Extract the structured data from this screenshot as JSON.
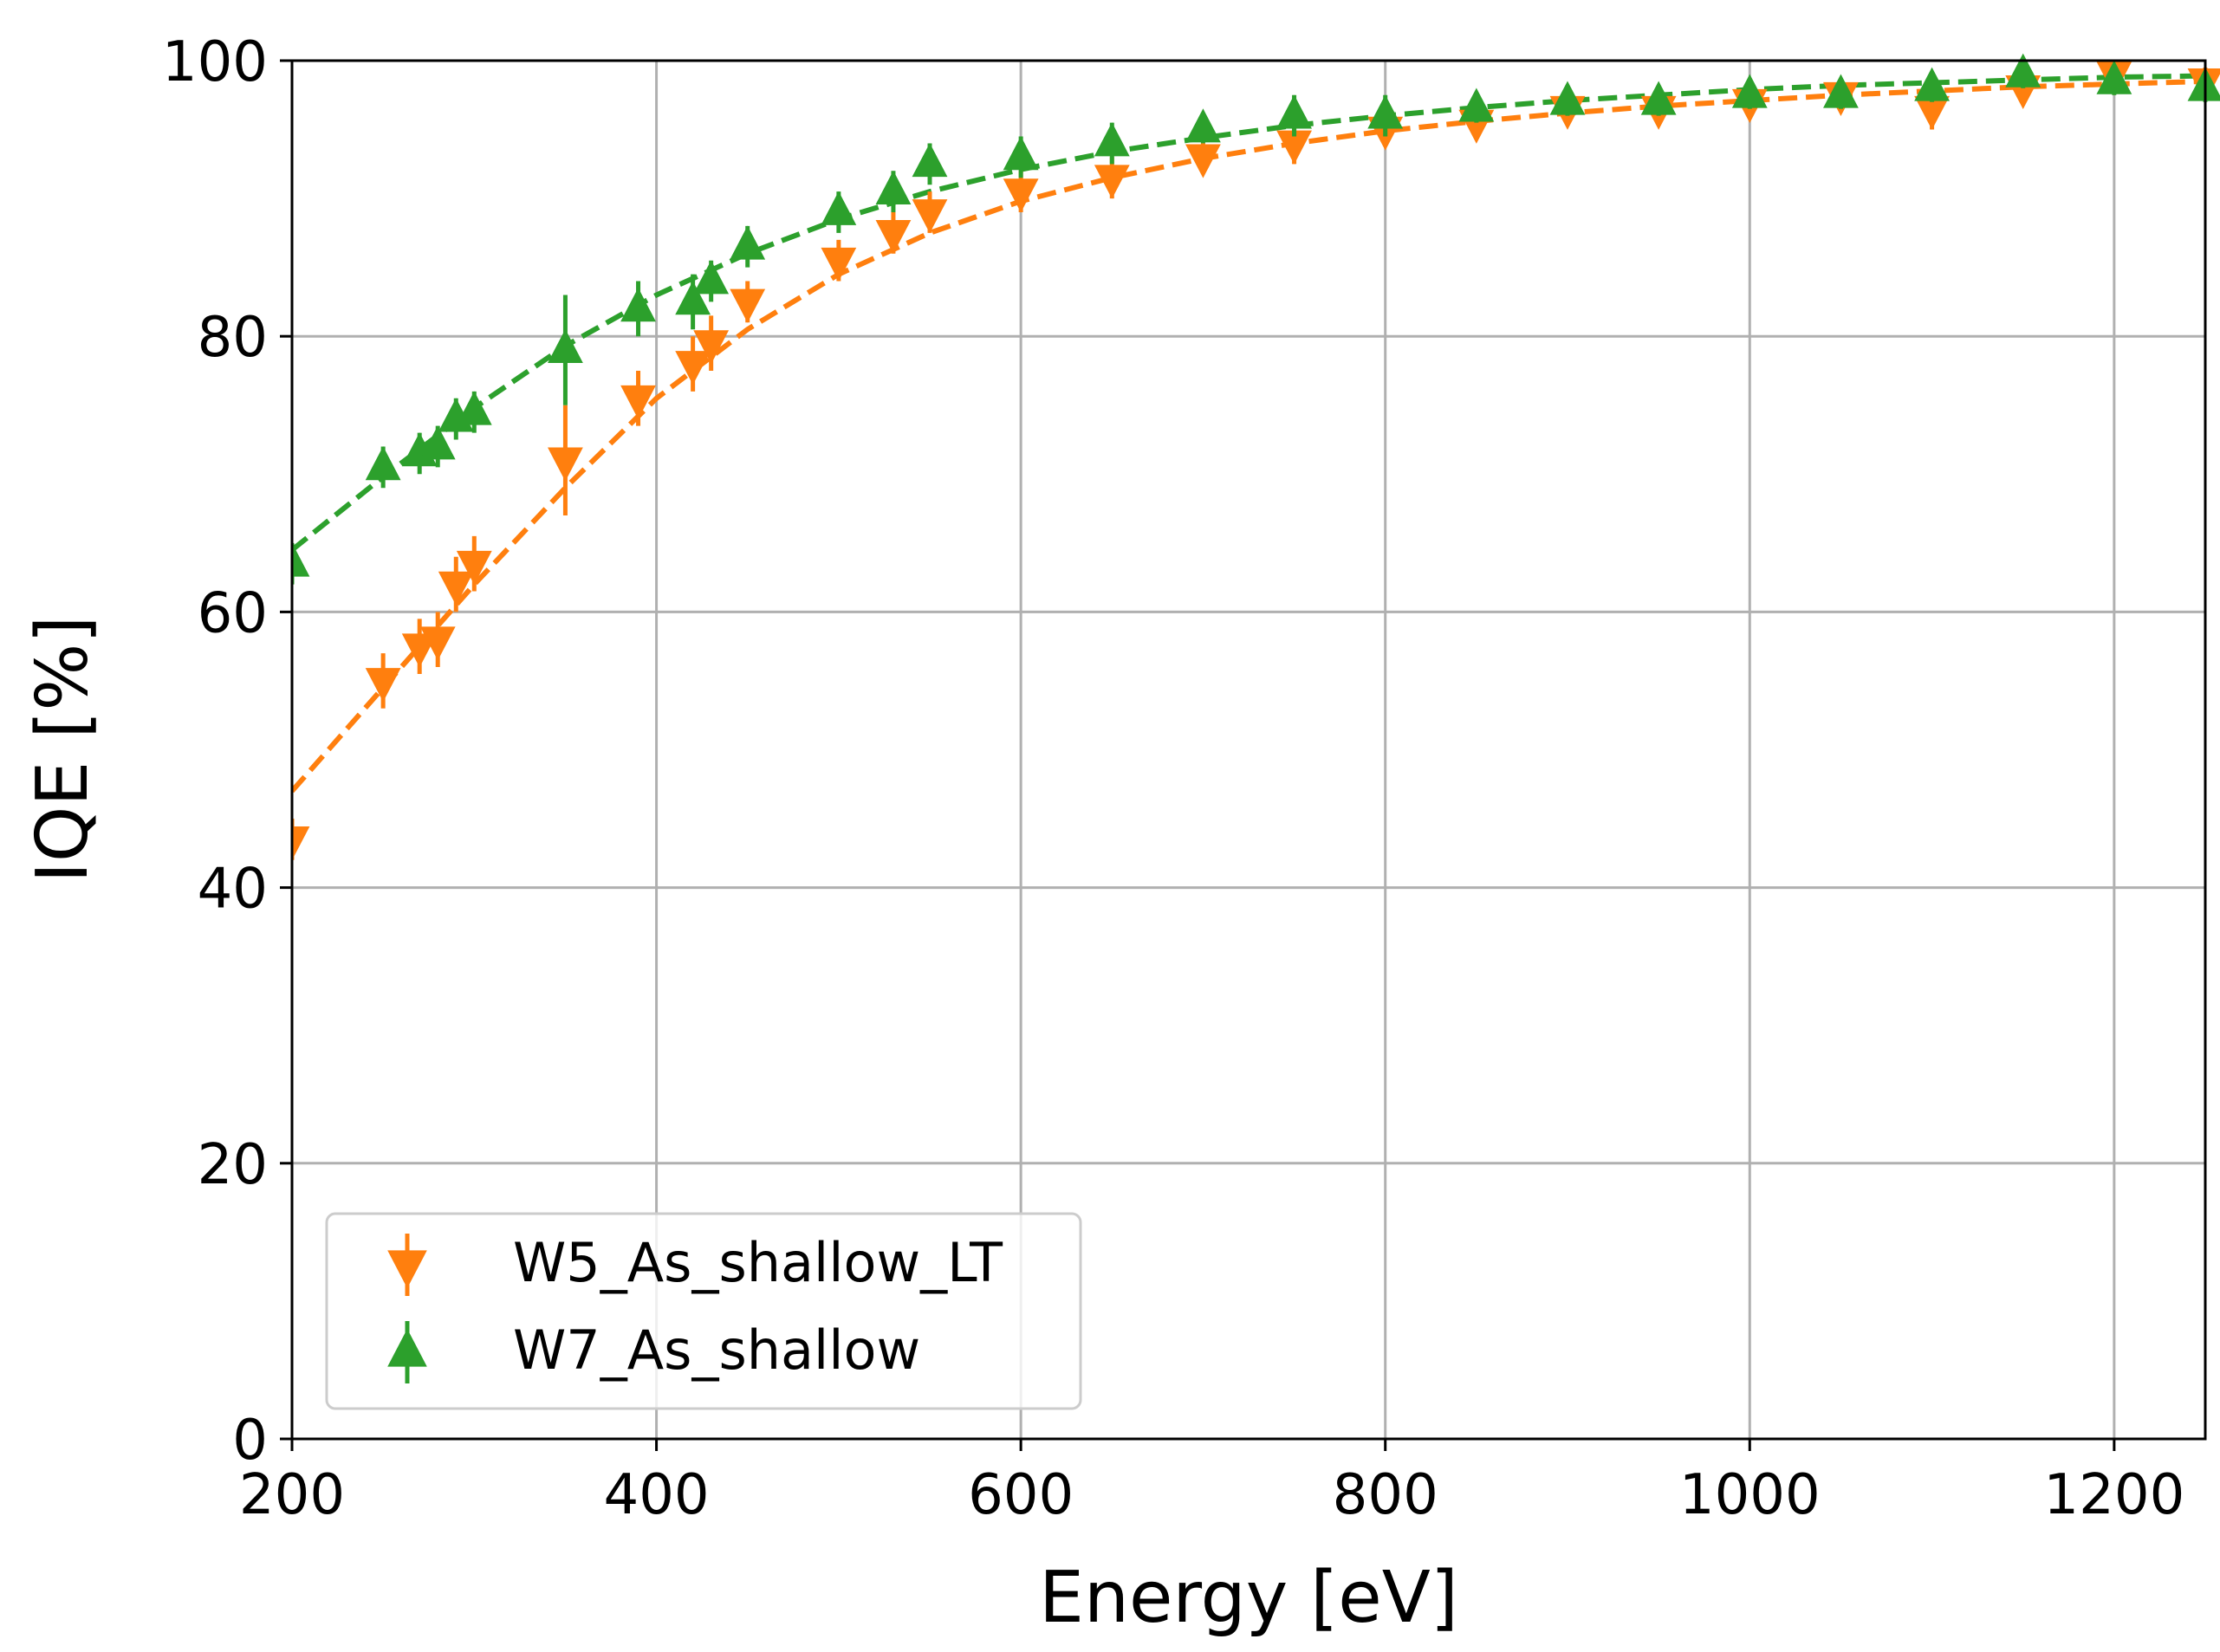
{
  "chart_data": {
    "type": "scatter",
    "title": "",
    "xlabel": "Energy [eV]",
    "ylabel": "IQE [%]",
    "xlim": [
      200,
      1250
    ],
    "ylim": [
      0,
      100
    ],
    "x_ticks": [
      200,
      400,
      600,
      800,
      1000,
      1200
    ],
    "y_ticks": [
      0,
      20,
      40,
      60,
      80,
      100
    ],
    "grid": true,
    "legend_position": "bottom-left",
    "series": [
      {
        "name": "W5_As_shallow_LT",
        "color": "#ff7f0e",
        "marker": "triangle-down",
        "points": [
          {
            "x": 200,
            "y": 43.5,
            "err": 1.5
          },
          {
            "x": 250,
            "y": 55.0,
            "err": 2.0
          },
          {
            "x": 270,
            "y": 57.5,
            "err": 2.0
          },
          {
            "x": 280,
            "y": 58.0,
            "err": 2.0
          },
          {
            "x": 290,
            "y": 62.0,
            "err": 2.0
          },
          {
            "x": 300,
            "y": 63.5,
            "err": 2.0
          },
          {
            "x": 350,
            "y": 71.0,
            "err": 4.0
          },
          {
            "x": 390,
            "y": 75.5,
            "err": 2.0
          },
          {
            "x": 420,
            "y": 78.0,
            "err": 2.0
          },
          {
            "x": 430,
            "y": 79.5,
            "err": 2.0
          },
          {
            "x": 450,
            "y": 82.5,
            "err": 1.5
          },
          {
            "x": 500,
            "y": 85.5,
            "err": 1.5
          },
          {
            "x": 530,
            "y": 87.5,
            "err": 1.5
          },
          {
            "x": 550,
            "y": 89.0,
            "err": 1.5
          },
          {
            "x": 600,
            "y": 90.5,
            "err": 1.5
          },
          {
            "x": 650,
            "y": 91.5,
            "err": 1.5
          },
          {
            "x": 700,
            "y": 93.0,
            "err": 1.0
          },
          {
            "x": 750,
            "y": 94.0,
            "err": 1.5
          },
          {
            "x": 800,
            "y": 95.0,
            "err": 1.0
          },
          {
            "x": 850,
            "y": 95.5,
            "err": 1.0
          },
          {
            "x": 900,
            "y": 96.5,
            "err": 1.0
          },
          {
            "x": 950,
            "y": 96.5,
            "err": 1.0
          },
          {
            "x": 1000,
            "y": 97.0,
            "err": 1.0
          },
          {
            "x": 1050,
            "y": 97.5,
            "err": 1.0
          },
          {
            "x": 1100,
            "y": 96.5,
            "err": 1.5
          },
          {
            "x": 1150,
            "y": 98.0,
            "err": 1.0
          },
          {
            "x": 1200,
            "y": 99.0,
            "err": 1.0
          },
          {
            "x": 1250,
            "y": 98.5,
            "err": 1.0
          }
        ],
        "fit": [
          {
            "x": 200,
            "y": 47.0
          },
          {
            "x": 250,
            "y": 54.5
          },
          {
            "x": 300,
            "y": 62.0
          },
          {
            "x": 350,
            "y": 69.0
          },
          {
            "x": 400,
            "y": 75.5
          },
          {
            "x": 450,
            "y": 80.5
          },
          {
            "x": 500,
            "y": 84.5
          },
          {
            "x": 550,
            "y": 87.5
          },
          {
            "x": 600,
            "y": 89.8
          },
          {
            "x": 650,
            "y": 91.5
          },
          {
            "x": 700,
            "y": 92.9
          },
          {
            "x": 750,
            "y": 94.0
          },
          {
            "x": 800,
            "y": 94.9
          },
          {
            "x": 850,
            "y": 95.6
          },
          {
            "x": 900,
            "y": 96.2
          },
          {
            "x": 950,
            "y": 96.7
          },
          {
            "x": 1000,
            "y": 97.1
          },
          {
            "x": 1050,
            "y": 97.5
          },
          {
            "x": 1100,
            "y": 97.8
          },
          {
            "x": 1150,
            "y": 98.1
          },
          {
            "x": 1200,
            "y": 98.3
          },
          {
            "x": 1250,
            "y": 98.5
          }
        ]
      },
      {
        "name": "W7_As_shallow",
        "color": "#2ca02c",
        "marker": "triangle-up",
        "points": [
          {
            "x": 200,
            "y": 63.5,
            "err": 1.5
          },
          {
            "x": 250,
            "y": 70.5,
            "err": 1.5
          },
          {
            "x": 270,
            "y": 71.5,
            "err": 1.5
          },
          {
            "x": 280,
            "y": 72.0,
            "err": 1.5
          },
          {
            "x": 290,
            "y": 74.0,
            "err": 1.5
          },
          {
            "x": 300,
            "y": 74.5,
            "err": 1.5
          },
          {
            "x": 350,
            "y": 79.0,
            "err": 4.0
          },
          {
            "x": 390,
            "y": 82.0,
            "err": 2.0
          },
          {
            "x": 420,
            "y": 82.5,
            "err": 2.0
          },
          {
            "x": 430,
            "y": 84.0,
            "err": 1.5
          },
          {
            "x": 450,
            "y": 86.5,
            "err": 1.5
          },
          {
            "x": 500,
            "y": 89.0,
            "err": 1.5
          },
          {
            "x": 530,
            "y": 90.5,
            "err": 1.5
          },
          {
            "x": 550,
            "y": 92.5,
            "err": 1.5
          },
          {
            "x": 600,
            "y": 93.0,
            "err": 1.5
          },
          {
            "x": 650,
            "y": 94.0,
            "err": 1.5
          },
          {
            "x": 700,
            "y": 95.0,
            "err": 1.0
          },
          {
            "x": 750,
            "y": 96.0,
            "err": 1.5
          },
          {
            "x": 800,
            "y": 96.0,
            "err": 1.5
          },
          {
            "x": 850,
            "y": 96.5,
            "err": 1.0
          },
          {
            "x": 900,
            "y": 97.0,
            "err": 1.0
          },
          {
            "x": 950,
            "y": 97.0,
            "err": 1.0
          },
          {
            "x": 1000,
            "y": 97.5,
            "err": 1.0
          },
          {
            "x": 1050,
            "y": 97.5,
            "err": 1.0
          },
          {
            "x": 1100,
            "y": 98.0,
            "err": 1.0
          },
          {
            "x": 1150,
            "y": 99.0,
            "err": 1.0
          },
          {
            "x": 1200,
            "y": 98.5,
            "err": 1.0
          },
          {
            "x": 1250,
            "y": 98.0,
            "err": 1.0
          }
        ],
        "fit": [
          {
            "x": 200,
            "y": 64.5
          },
          {
            "x": 250,
            "y": 69.8
          },
          {
            "x": 300,
            "y": 74.8
          },
          {
            "x": 350,
            "y": 79.3
          },
          {
            "x": 400,
            "y": 83.0
          },
          {
            "x": 450,
            "y": 86.0
          },
          {
            "x": 500,
            "y": 88.5
          },
          {
            "x": 550,
            "y": 90.5
          },
          {
            "x": 600,
            "y": 92.1
          },
          {
            "x": 650,
            "y": 93.4
          },
          {
            "x": 700,
            "y": 94.4
          },
          {
            "x": 750,
            "y": 95.3
          },
          {
            "x": 800,
            "y": 96.0
          },
          {
            "x": 850,
            "y": 96.6
          },
          {
            "x": 900,
            "y": 97.1
          },
          {
            "x": 950,
            "y": 97.5
          },
          {
            "x": 1000,
            "y": 97.9
          },
          {
            "x": 1050,
            "y": 98.2
          },
          {
            "x": 1100,
            "y": 98.4
          },
          {
            "x": 1150,
            "y": 98.6
          },
          {
            "x": 1200,
            "y": 98.8
          },
          {
            "x": 1250,
            "y": 98.9
          }
        ]
      }
    ]
  }
}
